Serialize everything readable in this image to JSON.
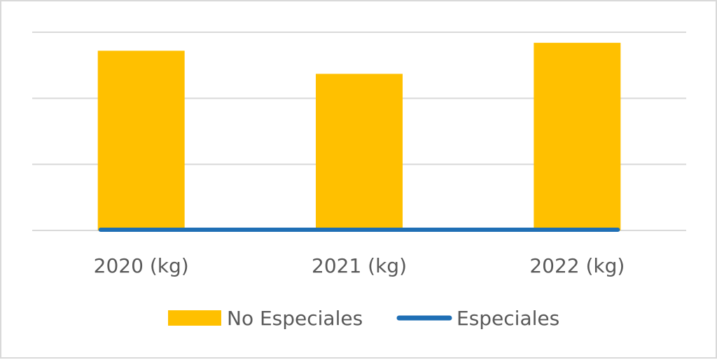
{
  "chart_data": {
    "type": "bar",
    "categories": [
      "2020 (kg)",
      "2021 (kg)",
      "2022 (kg)"
    ],
    "series": [
      {
        "name": "No Especiales",
        "type": "bar",
        "color": "#ffc000",
        "values": [
          2.72,
          2.37,
          2.84
        ]
      },
      {
        "name": "Especiales",
        "type": "line",
        "color": "#1f6fb5",
        "values": [
          0.01,
          0.01,
          0.01
        ]
      }
    ],
    "ylim": [
      0,
      3
    ],
    "grid": true,
    "legend": "bottom",
    "title": "",
    "xlabel": "",
    "ylabel": ""
  }
}
